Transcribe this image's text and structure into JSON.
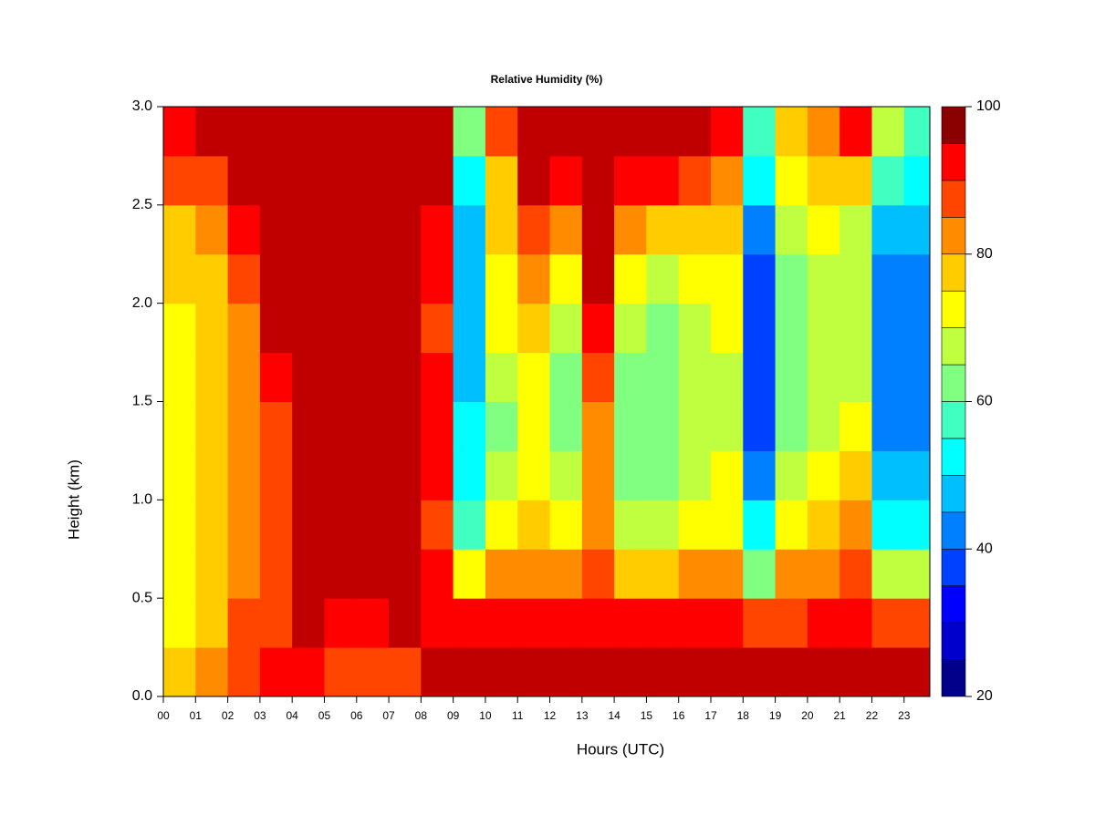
{
  "chart_data": {
    "type": "heatmap",
    "title": "Relative Humidity (%)",
    "x_label": "Hours (UTC)",
    "y_label": "Height (km)",
    "x_edges": [
      0,
      1,
      2,
      3,
      4,
      5,
      6,
      7,
      8,
      9,
      10,
      11,
      12,
      13,
      14,
      15,
      16,
      17,
      18,
      19,
      20,
      21,
      22,
      23,
      23.8
    ],
    "y_edges": [
      0,
      0.25,
      0.5,
      0.75,
      1.0,
      1.25,
      1.5,
      1.75,
      2.0,
      2.25,
      2.5,
      2.75,
      3.0
    ],
    "z": [
      [
        78,
        74,
        72,
        72,
        72,
        72,
        72,
        73,
        75,
        78,
        85,
        92
      ],
      [
        82,
        78,
        76,
        76,
        76,
        76,
        76,
        76,
        78,
        82,
        88,
        96
      ],
      [
        88,
        85,
        82,
        80,
        80,
        80,
        80,
        82,
        85,
        90,
        95,
        98
      ],
      [
        92,
        88,
        86,
        85,
        86,
        88,
        92,
        95,
        97,
        98,
        98,
        98
      ],
      [
        90,
        96,
        97,
        97,
        98,
        98,
        98,
        98,
        98,
        98,
        98,
        98
      ],
      [
        88,
        94,
        96,
        97,
        97,
        98,
        98,
        98,
        98,
        98,
        98,
        98
      ],
      [
        85,
        92,
        95,
        96,
        96,
        97,
        97,
        98,
        98,
        98,
        98,
        97
      ],
      [
        86,
        95,
        97,
        97,
        97,
        97,
        97,
        97,
        97,
        96,
        96,
        96
      ],
      [
        95,
        92,
        90,
        88,
        90,
        92,
        90,
        88,
        90,
        92,
        95,
        96
      ],
      [
        98,
        92,
        70,
        58,
        52,
        50,
        48,
        45,
        45,
        48,
        52,
        62
      ],
      [
        98,
        90,
        80,
        70,
        65,
        62,
        65,
        70,
        72,
        75,
        78,
        85
      ],
      [
        98,
        92,
        82,
        75,
        72,
        70,
        72,
        75,
        80,
        88,
        95,
        98
      ],
      [
        98,
        90,
        80,
        70,
        65,
        62,
        62,
        65,
        70,
        80,
        92,
        98
      ],
      [
        98,
        92,
        85,
        80,
        80,
        82,
        85,
        92,
        95,
        98,
        98,
        98
      ],
      [
        98,
        90,
        78,
        68,
        62,
        60,
        62,
        65,
        70,
        80,
        92,
        98
      ],
      [
        98,
        90,
        78,
        68,
        62,
        60,
        60,
        62,
        65,
        75,
        90,
        98
      ],
      [
        98,
        90,
        80,
        70,
        66,
        65,
        65,
        66,
        70,
        75,
        85,
        95
      ],
      [
        97,
        90,
        80,
        72,
        70,
        68,
        68,
        70,
        72,
        75,
        80,
        90
      ],
      [
        96,
        88,
        60,
        50,
        42,
        38,
        35,
        35,
        38,
        42,
        50,
        55
      ],
      [
        95,
        88,
        80,
        72,
        66,
        62,
        60,
        60,
        62,
        65,
        70,
        75
      ],
      [
        96,
        90,
        82,
        75,
        70,
        68,
        65,
        65,
        66,
        70,
        75,
        82
      ],
      [
        97,
        92,
        88,
        80,
        75,
        70,
        68,
        66,
        66,
        68,
        75,
        90
      ],
      [
        97,
        88,
        65,
        50,
        45,
        42,
        40,
        40,
        42,
        45,
        55,
        65
      ],
      [
        97,
        88,
        65,
        52,
        45,
        42,
        40,
        40,
        42,
        45,
        50,
        58
      ]
    ],
    "levels": [
      20,
      25,
      30,
      35,
      40,
      45,
      50,
      55,
      60,
      65,
      70,
      75,
      80,
      85,
      90,
      95,
      100
    ],
    "colors": [
      "#00008b",
      "#0000cd",
      "#0000ff",
      "#0040ff",
      "#0080ff",
      "#00bfff",
      "#00ffff",
      "#40ffc0",
      "#80ff80",
      "#c0ff40",
      "#ffff00",
      "#ffcc00",
      "#ff8c00",
      "#ff4500",
      "#ff0000",
      "#c00000"
    ],
    "top_color": "#8b0000",
    "xlim": [
      0,
      23.8
    ],
    "ylim": [
      0,
      3.0
    ],
    "xticks": [
      {
        "value": 0,
        "label": "00"
      },
      {
        "value": 1,
        "label": "01"
      },
      {
        "value": 2,
        "label": "02"
      },
      {
        "value": 3,
        "label": "03"
      },
      {
        "value": 4,
        "label": "04"
      },
      {
        "value": 5,
        "label": "05"
      },
      {
        "value": 6,
        "label": "06"
      },
      {
        "value": 7,
        "label": "07"
      },
      {
        "value": 8,
        "label": "08"
      },
      {
        "value": 9,
        "label": "09"
      },
      10,
      11,
      12,
      13,
      14,
      15,
      16,
      17,
      18,
      19,
      20,
      21,
      22,
      23
    ],
    "yticks": [
      {
        "value": 0,
        "label": "0.0"
      },
      0.5,
      {
        "value": 1,
        "label": "1.0"
      },
      1.5,
      {
        "value": 2,
        "label": "2.0"
      },
      2.5,
      {
        "value": 3,
        "label": "3.0"
      }
    ],
    "colorbar_ticks": [
      20,
      40,
      60,
      80,
      100
    ]
  }
}
